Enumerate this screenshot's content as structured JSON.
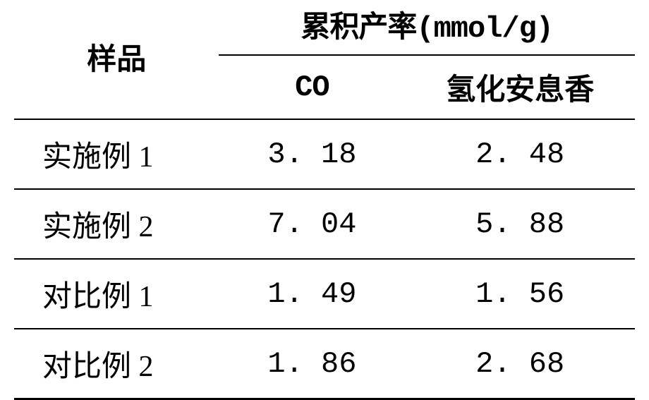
{
  "table": {
    "headers": {
      "sample": "样品",
      "cumulative_yield": "累积产率(mmol/g)",
      "co": "CO",
      "hydrobenzoin": "氢化安息香"
    },
    "rows": [
      {
        "sample": "实施例 1",
        "co": "3. 18",
        "hydrobenzoin": "2. 48"
      },
      {
        "sample": "实施例 2",
        "co": "7. 04",
        "hydrobenzoin": "5. 88"
      },
      {
        "sample": "对比例 1",
        "co": "1. 49",
        "hydrobenzoin": "1. 56"
      },
      {
        "sample": "对比例 2",
        "co": "1. 86",
        "hydrobenzoin": "2. 68"
      }
    ],
    "styling": {
      "font_size": 42,
      "header_font_weight": "bold",
      "text_color": "#000000",
      "background_color": "#ffffff",
      "border_thick": 3,
      "border_thin": 2,
      "border_color": "#000000"
    }
  }
}
